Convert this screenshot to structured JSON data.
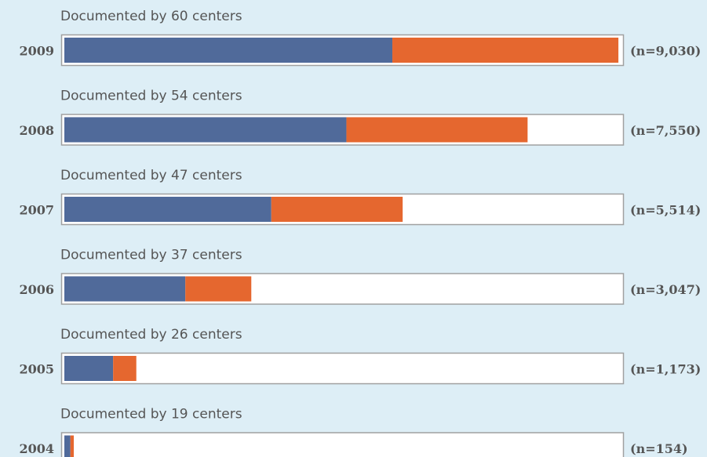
{
  "chart_data": {
    "type": "stacked-bar-horizontal",
    "categories": [
      "2009",
      "2008",
      "2007",
      "2006",
      "2005",
      "2004"
    ],
    "notes": [
      "Documented by 60 centers",
      "Documented by 54 centers",
      "Documented by 47 centers",
      "Documented by 37 centers",
      "Documented by 26 centers",
      "Documented by 19 centers"
    ],
    "series": [
      {
        "color": "#506a9a",
        "values": [
          5346,
          4597,
          3373,
          1972,
          795,
          98
        ]
      },
      {
        "color": "#e5672f",
        "values": [
          3684,
          2953,
          2141,
          1075,
          378,
          56
        ]
      }
    ],
    "totals": [
      9030,
      7550,
      5514,
      3047,
      1173,
      154
    ],
    "total_labels": [
      "(n=9,030)",
      "(n=7,550)",
      "(n=5,514)",
      "(n=3,047)",
      "(n=1,173)",
      "(n=154)"
    ],
    "xlim": [
      0,
      9080
    ]
  }
}
